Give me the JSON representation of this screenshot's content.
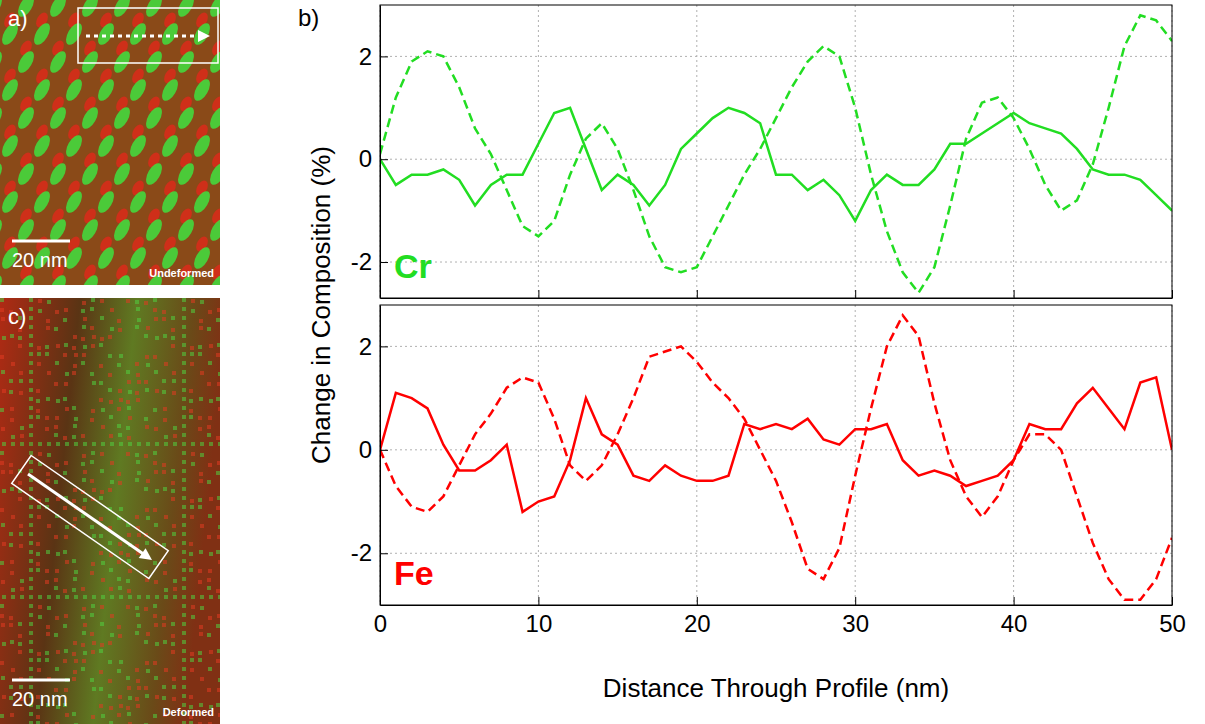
{
  "images": [
    {
      "label": "a)",
      "scale_bar": "20 nm",
      "caption": "Undeformed"
    },
    {
      "label": "c)",
      "scale_bar": "20 nm",
      "caption": "Deformed"
    }
  ],
  "figure_b": {
    "label": "b)",
    "ylabel": "Change in Composition (%)"
  },
  "chart_data": [
    {
      "type": "line",
      "annotation": "Cr",
      "x": [
        0,
        1,
        2,
        3,
        4,
        5,
        6,
        7,
        8,
        9,
        10,
        11,
        12,
        13,
        14,
        15,
        16,
        17,
        18,
        19,
        20,
        21,
        22,
        23,
        24,
        25,
        26,
        27,
        28,
        29,
        30,
        31,
        32,
        33,
        34,
        35,
        36,
        37,
        38,
        39,
        40,
        41,
        42,
        43,
        44,
        45,
        46,
        47,
        48,
        49,
        50
      ],
      "xlim": [
        0,
        50
      ],
      "xticks": [
        0,
        10,
        20,
        30,
        40,
        50
      ],
      "ylim": [
        -2.7,
        3.0
      ],
      "yticks": [
        -2,
        0,
        2
      ],
      "grid": true,
      "tick_labels": "y",
      "series": [
        {
          "color": "#22dd22",
          "line_style": "solid",
          "values": [
            0,
            -0.5,
            -0.3,
            -0.3,
            -0.2,
            -0.4,
            -0.9,
            -0.5,
            -0.3,
            -0.3,
            0.3,
            0.9,
            1.0,
            0.2,
            -0.6,
            -0.3,
            -0.5,
            -0.9,
            -0.5,
            0.2,
            0.5,
            0.8,
            1.0,
            0.9,
            0.7,
            -0.3,
            -0.3,
            -0.6,
            -0.4,
            -0.7,
            -1.2,
            -0.6,
            -0.3,
            -0.5,
            -0.5,
            -0.2,
            0.3,
            0.3,
            0.5,
            0.7,
            0.9,
            0.7,
            0.6,
            0.5,
            0.2,
            -0.2,
            -0.3,
            -0.3,
            -0.4,
            -0.7,
            -1.0
          ]
        },
        {
          "color": "#22dd22",
          "line_style": "dashed",
          "values": [
            0.1,
            1.2,
            1.9,
            2.1,
            2.0,
            1.4,
            0.6,
            0.1,
            -0.6,
            -1.3,
            -1.5,
            -1.2,
            -0.3,
            0.4,
            0.7,
            0.2,
            -0.6,
            -1.5,
            -2.1,
            -2.2,
            -2.1,
            -1.5,
            -0.9,
            -0.3,
            0.2,
            0.8,
            1.4,
            1.9,
            2.2,
            2.0,
            1.0,
            -0.3,
            -1.4,
            -2.2,
            -2.6,
            -2.1,
            -0.9,
            0.4,
            1.1,
            1.2,
            0.8,
            0.2,
            -0.5,
            -1.0,
            -0.8,
            -0.1,
            1.0,
            2.2,
            2.8,
            2.7,
            2.3
          ]
        }
      ]
    },
    {
      "type": "line",
      "annotation": "Fe",
      "xlabel": "Distance Through Profile (nm)",
      "x": [
        0,
        1,
        2,
        3,
        4,
        5,
        6,
        7,
        8,
        9,
        10,
        11,
        12,
        13,
        14,
        15,
        16,
        17,
        18,
        19,
        20,
        21,
        22,
        23,
        24,
        25,
        26,
        27,
        28,
        29,
        30,
        31,
        32,
        33,
        34,
        35,
        36,
        37,
        38,
        39,
        40,
        41,
        42,
        43,
        44,
        45,
        46,
        47,
        48,
        49,
        50
      ],
      "xlim": [
        0,
        50
      ],
      "xticks": [
        0,
        10,
        20,
        30,
        40,
        50
      ],
      "ylim": [
        -3.0,
        2.8
      ],
      "yticks": [
        -2,
        0,
        2
      ],
      "grid": true,
      "series": [
        {
          "color": "#ff0000",
          "line_style": "solid",
          "values": [
            0,
            1.1,
            1.0,
            0.8,
            0.1,
            -0.4,
            -0.4,
            -0.2,
            0.1,
            -1.2,
            -1.0,
            -0.9,
            -0.2,
            1.0,
            0.3,
            0.1,
            -0.5,
            -0.6,
            -0.3,
            -0.5,
            -0.6,
            -0.6,
            -0.5,
            0.5,
            0.4,
            0.5,
            0.4,
            0.6,
            0.2,
            0.1,
            0.4,
            0.4,
            0.5,
            -0.2,
            -0.5,
            -0.4,
            -0.5,
            -0.7,
            -0.6,
            -0.5,
            -0.2,
            0.5,
            0.4,
            0.4,
            0.9,
            1.2,
            0.8,
            0.4,
            1.3,
            1.4,
            0.0
          ]
        },
        {
          "color": "#ff0000",
          "line_style": "dashed",
          "values": [
            0,
            -0.7,
            -1.1,
            -1.2,
            -0.9,
            -0.3,
            0.3,
            0.7,
            1.2,
            1.4,
            1.3,
            0.6,
            -0.3,
            -0.6,
            -0.3,
            0.3,
            1.0,
            1.8,
            1.9,
            2.0,
            1.7,
            1.3,
            1.0,
            0.6,
            0.0,
            -0.6,
            -1.4,
            -2.3,
            -2.5,
            -1.9,
            -0.5,
            0.8,
            2.0,
            2.6,
            2.2,
            0.9,
            -0.2,
            -0.9,
            -1.3,
            -0.9,
            -0.2,
            0.3,
            0.3,
            0.0,
            -0.9,
            -1.8,
            -2.5,
            -2.9,
            -2.9,
            -2.5,
            -1.7
          ]
        }
      ]
    }
  ]
}
